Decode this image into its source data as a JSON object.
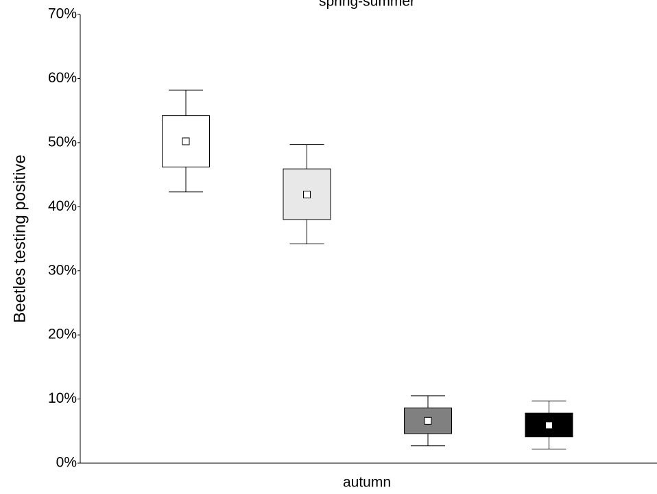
{
  "chart_data": {
    "type": "box",
    "title": "spring-summer",
    "x_label": "autumn",
    "y_label": "Beetles testing positive",
    "categories": [
      null,
      null,
      null,
      null
    ],
    "series": [
      {
        "color": "#ffffff",
        "mean": 50.2,
        "box_low": 46.2,
        "box_high": 54.2,
        "whisker_low": 42.3,
        "whisker_high": 58.2
      },
      {
        "color": "#e8e8e8",
        "mean": 41.9,
        "box_low": 38.0,
        "box_high": 45.9,
        "whisker_low": 34.2,
        "whisker_high": 49.7
      },
      {
        "color": "#808080",
        "mean": 6.6,
        "box_low": 4.6,
        "box_high": 8.6,
        "whisker_low": 2.7,
        "whisker_high": 10.5
      },
      {
        "color": "#000000",
        "mean": 5.9,
        "box_low": 4.1,
        "box_high": 7.8,
        "whisker_low": 2.2,
        "whisker_high": 9.7
      }
    ],
    "ylim": [
      0,
      70
    ],
    "yticks": [
      {
        "value": 0,
        "label": "0%"
      },
      {
        "value": 10,
        "label": "10%"
      },
      {
        "value": 20,
        "label": "20%"
      },
      {
        "value": 30,
        "label": "30%"
      },
      {
        "value": 40,
        "label": "40%"
      },
      {
        "value": 50,
        "label": "50%"
      },
      {
        "value": 60,
        "label": "60%"
      },
      {
        "value": 70,
        "label": "70%"
      }
    ]
  }
}
